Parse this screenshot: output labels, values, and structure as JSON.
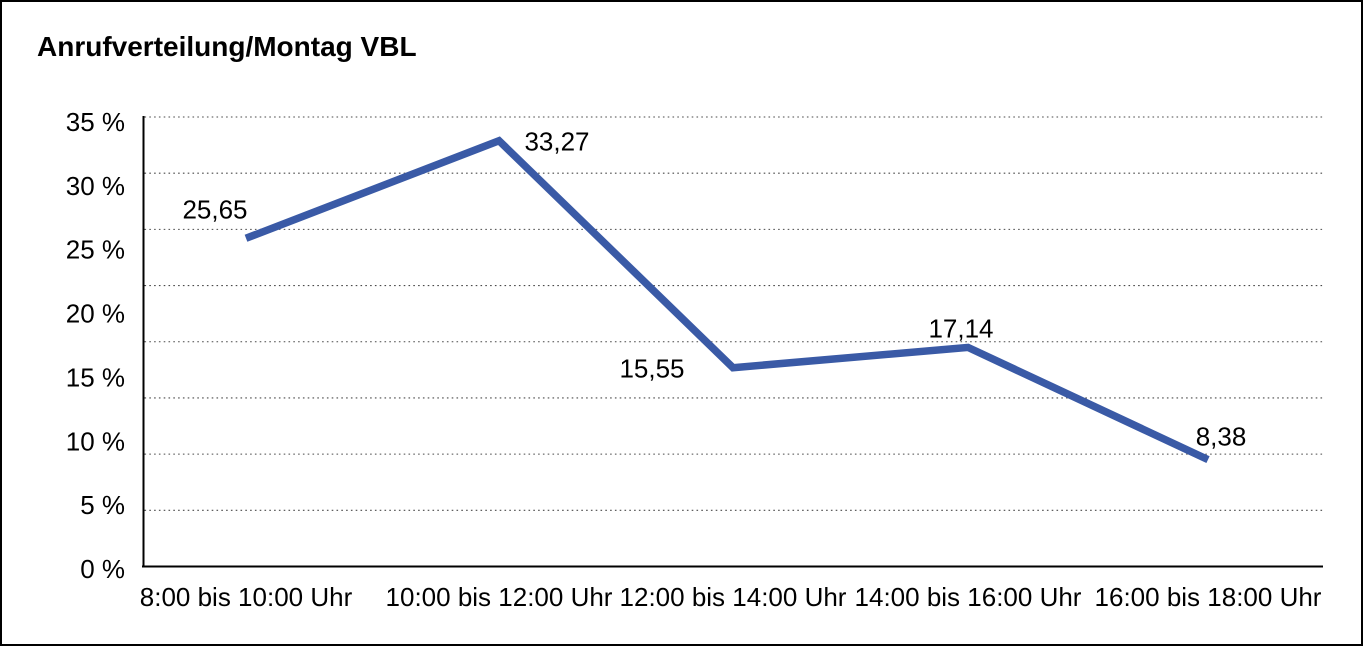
{
  "title": "Anrufverteilung/Montag VBL",
  "chart_data": {
    "type": "line",
    "title": "Anrufverteilung/Montag VBL",
    "categories": [
      "8:00 bis 10:00 Uhr",
      "10:00 bis 12:00 Uhr",
      "12:00 bis 14:00 Uhr",
      "14:00 bis 16:00 Uhr",
      "16:00 bis 18:00 Uhr"
    ],
    "values": [
      25.65,
      33.27,
      15.55,
      17.14,
      8.38
    ],
    "value_labels": [
      "25,65",
      "33,27",
      "15,55",
      "17,14",
      "8,38"
    ],
    "xlabel": "",
    "ylabel": "",
    "ylim": [
      0,
      35
    ],
    "y_ticks": [
      "0 %",
      "5 %",
      "10 %",
      "15 %",
      "20 %",
      "25 %",
      "30 %",
      "35 %"
    ],
    "grid": true,
    "grid_style": "dotted",
    "legend": false,
    "line_color": "#3A5AA6",
    "axis_color": "#000000",
    "grid_color": "#4a4a4a",
    "background_color": "#ffffff"
  }
}
